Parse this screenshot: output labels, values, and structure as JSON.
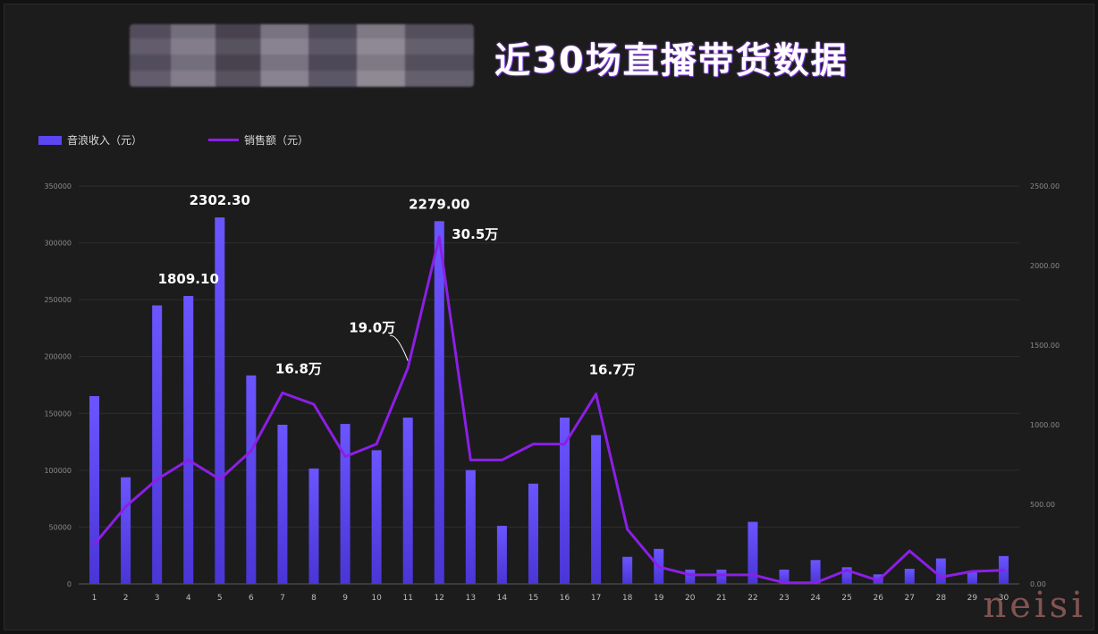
{
  "header": {
    "title": "近30场直播带货数据"
  },
  "watermark": "neisi",
  "chart_data": {
    "type": "bar",
    "title": "近30场直播带货数据",
    "legend_position": "top-left",
    "grid": true,
    "x": [
      "1",
      "2",
      "3",
      "4",
      "5",
      "6",
      "7",
      "8",
      "9",
      "10",
      "11",
      "12",
      "13",
      "14",
      "15",
      "16",
      "17",
      "18",
      "19",
      "20",
      "21",
      "22",
      "23",
      "24",
      "25",
      "26",
      "27",
      "28",
      "29",
      "30"
    ],
    "left_axis": {
      "ticks": [
        "0",
        "50000",
        "100000",
        "150000",
        "200000",
        "250000",
        "300000",
        "350000"
      ],
      "ylim": [
        0,
        350000
      ]
    },
    "right_axis": {
      "ticks": [
        "0.00",
        "500.00",
        "1000.00",
        "1500.00",
        "2000.00",
        "2500.00"
      ],
      "ylim": [
        0,
        2500
      ]
    },
    "series": [
      {
        "name": "音浪收入（元）",
        "type": "bar",
        "axis": "right",
        "color": "#5b46f2",
        "values": [
          1180,
          670,
          1750,
          1809.1,
          2302.3,
          1310,
          1000,
          725,
          1005,
          840,
          1045,
          2279,
          715,
          365,
          630,
          1045,
          935,
          170,
          220,
          90,
          90,
          390,
          90,
          150,
          105,
          60,
          95,
          160,
          80,
          175
        ]
      },
      {
        "name": "销售额（元）",
        "type": "line",
        "axis": "left",
        "color": "#8b1fe6",
        "values": [
          35000,
          68000,
          92000,
          109000,
          92000,
          117000,
          168000,
          158000,
          112000,
          123000,
          190000,
          305000,
          109000,
          109000,
          123000,
          123000,
          167000,
          48000,
          15000,
          8000,
          8000,
          8000,
          1000,
          1000,
          12000,
          3000,
          29000,
          6000,
          11000,
          12000
        ]
      }
    ],
    "annotations": [
      {
        "text": "2302.30",
        "series": 0,
        "index": 4
      },
      {
        "text": "1809.10",
        "series": 0,
        "index": 3
      },
      {
        "text": "2279.00",
        "series": 0,
        "index": 11
      },
      {
        "text": "16.8万",
        "series": 1,
        "index": 6
      },
      {
        "text": "19.0万",
        "series": 1,
        "index": 10
      },
      {
        "text": "30.5万",
        "series": 1,
        "index": 11
      },
      {
        "text": "16.7万",
        "series": 1,
        "index": 16
      }
    ]
  }
}
